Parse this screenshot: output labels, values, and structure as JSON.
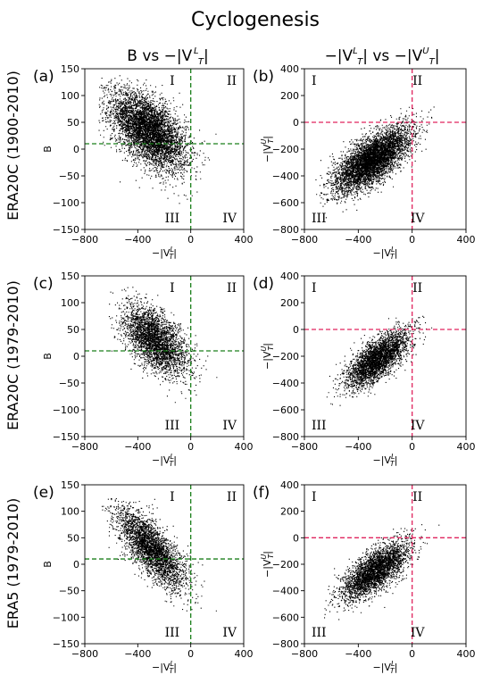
{
  "title": "Cyclogenesis",
  "columns": [
    "B vs −|V_T^L|",
    "−|V_T^L| vs −|V_T^U|"
  ],
  "rows": [
    "ERA20C (1900-2010)",
    "ERA20C (1979-2010)",
    "ERA5 (1979-2010)"
  ],
  "colors": {
    "points": "#000000",
    "ref_b": "#1a7f1a",
    "ref_vu": "#e0245e"
  },
  "chart_data": [
    {
      "panel": "(a)",
      "type": "scatter",
      "xlabel": "−|V_T^L|",
      "ylabel": "B",
      "xlim": [
        -800,
        400
      ],
      "ylim": [
        -150,
        150
      ],
      "xticks": [
        -800,
        -400,
        0,
        400
      ],
      "yticks": [
        -150,
        -100,
        -50,
        0,
        50,
        100,
        150
      ],
      "ref_lines": {
        "x": 0,
        "y": 10,
        "color": "ref_b"
      },
      "quadrants": [
        "I",
        "II",
        "III",
        "IV"
      ],
      "cloud": {
        "n": 5200,
        "x_mean": -320,
        "y_mean": 35,
        "x_sd": 140,
        "y_sd": 36,
        "corr": -0.55,
        "x_min": -700,
        "x_max": 300,
        "y_min": -140,
        "y_max": 140
      }
    },
    {
      "panel": "(b)",
      "type": "scatter",
      "xlabel": "−|V_T^L|",
      "ylabel": "−|V_T^U|",
      "xlim": [
        -800,
        400
      ],
      "ylim": [
        -800,
        400
      ],
      "xticks": [
        -800,
        -400,
        0,
        400
      ],
      "yticks": [
        -800,
        -600,
        -400,
        -200,
        0,
        200,
        400
      ],
      "ref_lines": {
        "x": 0,
        "y": 0,
        "color": "ref_vu"
      },
      "quadrants": [
        "I",
        "II",
        "III",
        "IV"
      ],
      "cloud": {
        "n": 5200,
        "x_mean": -300,
        "y_mean": -280,
        "x_sd": 140,
        "y_sd": 120,
        "corr": 0.7,
        "x_min": -720,
        "x_max": 260,
        "y_min": -720,
        "y_max": 120
      }
    },
    {
      "panel": "(c)",
      "type": "scatter",
      "xlabel": "−|V_T^L|",
      "ylabel": "B",
      "xlim": [
        -800,
        400
      ],
      "ylim": [
        -150,
        150
      ],
      "xticks": [
        -800,
        -400,
        0,
        400
      ],
      "yticks": [
        -150,
        -100,
        -50,
        0,
        50,
        100,
        150
      ],
      "ref_lines": {
        "x": 0,
        "y": 10,
        "color": "ref_b"
      },
      "quadrants": [
        "I",
        "II",
        "III",
        "IV"
      ],
      "cloud": {
        "n": 3200,
        "x_mean": -270,
        "y_mean": 30,
        "x_sd": 120,
        "y_sd": 32,
        "corr": -0.55,
        "x_min": -620,
        "x_max": 220,
        "y_min": -110,
        "y_max": 130
      }
    },
    {
      "panel": "(d)",
      "type": "scatter",
      "xlabel": "−|V_T^L|",
      "ylabel": "−|V_T^U|",
      "xlim": [
        -800,
        400
      ],
      "ylim": [
        -800,
        400
      ],
      "xticks": [
        -800,
        -400,
        0,
        400
      ],
      "yticks": [
        -800,
        -600,
        -400,
        -200,
        0,
        200,
        400
      ],
      "ref_lines": {
        "x": 0,
        "y": 0,
        "color": "ref_vu"
      },
      "quadrants": [
        "I",
        "II",
        "III",
        "IV"
      ],
      "cloud": {
        "n": 3200,
        "x_mean": -260,
        "y_mean": -220,
        "x_sd": 115,
        "y_sd": 105,
        "corr": 0.72,
        "x_min": -640,
        "x_max": 220,
        "y_min": -620,
        "y_max": 110
      }
    },
    {
      "panel": "(e)",
      "type": "scatter",
      "xlabel": "−|V_T^L|",
      "ylabel": "B",
      "xlim": [
        -800,
        400
      ],
      "ylim": [
        -150,
        150
      ],
      "xticks": [
        -800,
        -400,
        0,
        400
      ],
      "yticks": [
        -150,
        -100,
        -50,
        0,
        50,
        100,
        150
      ],
      "ref_lines": {
        "x": 0,
        "y": 10,
        "color": "ref_b"
      },
      "quadrants": [
        "I",
        "II",
        "III",
        "IV"
      ],
      "cloud": {
        "n": 3200,
        "x_mean": -300,
        "y_mean": 30,
        "x_sd": 130,
        "y_sd": 38,
        "corr": -0.75,
        "x_min": -680,
        "x_max": 260,
        "y_min": -120,
        "y_max": 125
      }
    },
    {
      "panel": "(f)",
      "type": "scatter",
      "xlabel": "−|V_T^L|",
      "ylabel": "−|V_T^U|",
      "xlim": [
        -800,
        400
      ],
      "ylim": [
        -800,
        400
      ],
      "xticks": [
        -800,
        -400,
        0,
        400
      ],
      "yticks": [
        -800,
        -600,
        -400,
        -200,
        0,
        200,
        400
      ],
      "ref_lines": {
        "x": 0,
        "y": 0,
        "color": "ref_vu"
      },
      "quadrants": [
        "I",
        "II",
        "III",
        "IV"
      ],
      "cloud": {
        "n": 3200,
        "x_mean": -280,
        "y_mean": -250,
        "x_sd": 125,
        "y_sd": 110,
        "corr": 0.72,
        "x_min": -660,
        "x_max": 220,
        "y_min": -660,
        "y_max": 110
      }
    }
  ]
}
